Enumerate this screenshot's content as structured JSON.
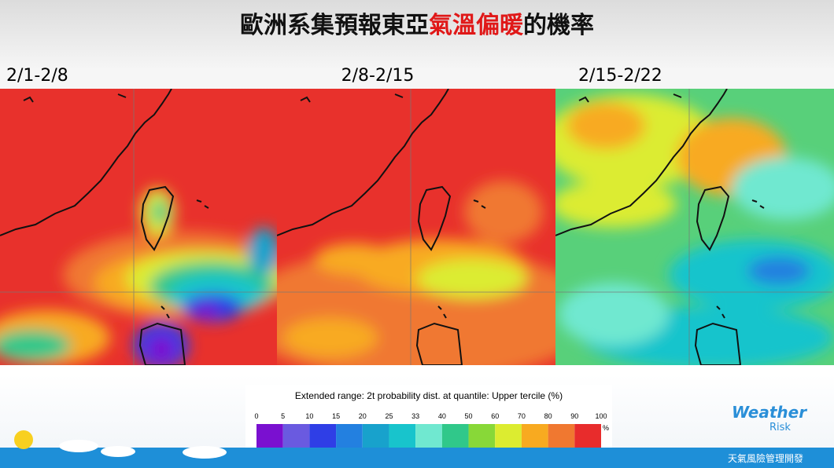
{
  "header": {
    "title_parts": [
      {
        "text": "歐洲系集預報東亞",
        "color": "#111111"
      },
      {
        "text": "氣溫偏暖",
        "color": "#e01818"
      },
      {
        "text": "的機率",
        "color": "#111111"
      }
    ]
  },
  "panels": [
    {
      "label": "2/1-2/8"
    },
    {
      "label": "2/8-2/15"
    },
    {
      "label": "2/15-2/22"
    }
  ],
  "colorbar": {
    "title": "Extended range: 2t probability dist. at quantile: Upper tercile (%)",
    "ticks": [
      0,
      5,
      10,
      15,
      20,
      25,
      33,
      40,
      50,
      60,
      70,
      80,
      90,
      100
    ],
    "unit": "%",
    "colors": [
      "#7a10d0",
      "#6a5ae0",
      "#2f3ee6",
      "#2380e0",
      "#18a2cc",
      "#18c4cc",
      "#70e8d0",
      "#30c88a",
      "#88d838",
      "#dcec30",
      "#f8aa20",
      "#f07830",
      "#e82c2c"
    ]
  },
  "logo": {
    "name": "Weather",
    "sub": "Risk"
  },
  "footer": {
    "text": "天氣風險管理開發"
  }
}
